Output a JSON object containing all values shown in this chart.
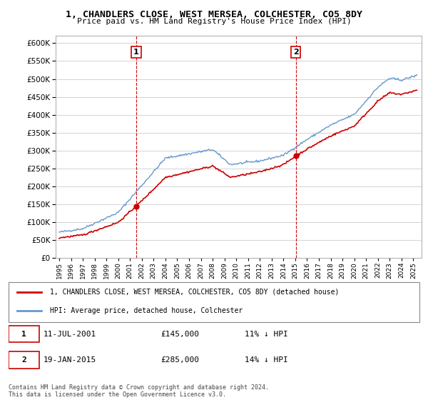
{
  "title": "1, CHANDLERS CLOSE, WEST MERSEA, COLCHESTER, CO5 8DY",
  "subtitle": "Price paid vs. HM Land Registry's House Price Index (HPI)",
  "ylim": [
    0,
    620000
  ],
  "yticks": [
    0,
    50000,
    100000,
    150000,
    200000,
    250000,
    300000,
    350000,
    400000,
    450000,
    500000,
    550000,
    600000
  ],
  "sale1_date": 2001.53,
  "sale1_price": 145000,
  "sale1_label": "1",
  "sale2_date": 2015.05,
  "sale2_price": 285000,
  "sale2_label": "2",
  "legend_line1": "1, CHANDLERS CLOSE, WEST MERSEA, COLCHESTER, CO5 8DY (detached house)",
  "legend_line2": "HPI: Average price, detached house, Colchester",
  "footer": "Contains HM Land Registry data © Crown copyright and database right 2024.\nThis data is licensed under the Open Government Licence v3.0.",
  "line_color_red": "#cc0000",
  "line_color_blue": "#6699cc",
  "background_color": "#ffffff",
  "grid_color": "#cccccc"
}
